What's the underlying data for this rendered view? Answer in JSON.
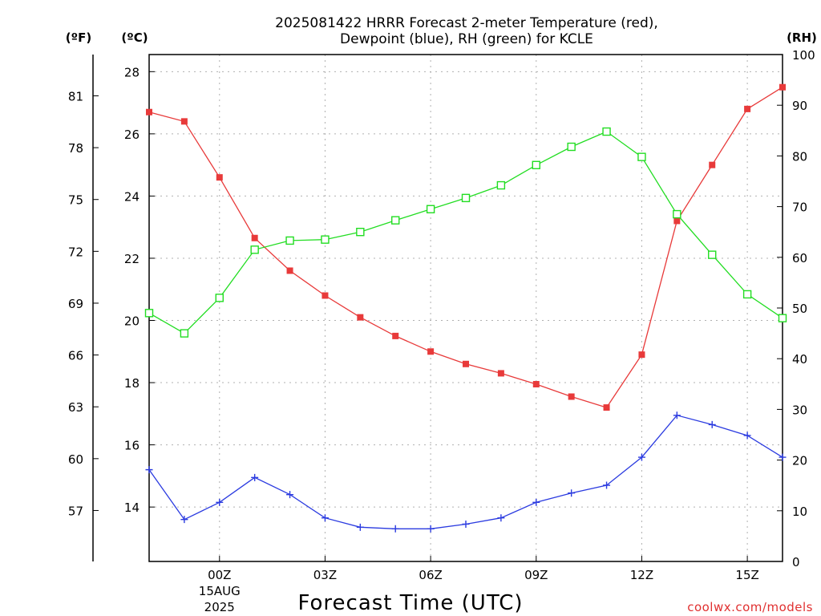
{
  "chart_data": {
    "type": "line",
    "title_line1": "2025081422 HRRR Forecast 2-meter Temperature (red),",
    "title_line2": "Dewpoint (blue), RH (green) for KCLE",
    "xlabel": "Forecast Time (UTC)",
    "credit": "coolwx.com/models",
    "unit_f": "(ºF)",
    "unit_c": "(ºC)",
    "unit_rh": "(RH)",
    "x_hours": [
      -2,
      -1,
      0,
      1,
      2,
      3,
      4,
      5,
      6,
      7,
      8,
      9,
      10,
      11,
      12,
      13,
      14,
      15,
      16
    ],
    "x_range": [
      -2,
      16
    ],
    "x_ticks": [
      {
        "hour": 0,
        "label": "00Z",
        "sub1": "15AUG",
        "sub2": "2025"
      },
      {
        "hour": 3,
        "label": "03Z"
      },
      {
        "hour": 6,
        "label": "06Z"
      },
      {
        "hour": 9,
        "label": "09Z"
      },
      {
        "hour": 12,
        "label": "12Z"
      },
      {
        "hour": 15,
        "label": "15Z"
      }
    ],
    "y_c_range": [
      12.25,
      28.55
    ],
    "y_c_ticks": [
      "14",
      "16",
      "18",
      "20",
      "22",
      "24",
      "26",
      "28"
    ],
    "y_f_ticks": [
      "57",
      "60",
      "63",
      "66",
      "69",
      "72",
      "75",
      "78",
      "81"
    ],
    "y_rh_range": [
      0,
      100
    ],
    "y_rh_ticks": [
      "0",
      "10",
      "20",
      "30",
      "40",
      "50",
      "60",
      "70",
      "80",
      "90",
      "100"
    ],
    "grid": true,
    "series": [
      {
        "name": "Temperature (red)",
        "axis": "c",
        "color": "#e83a3a",
        "marker": "filled-square",
        "values": [
          26.7,
          26.4,
          24.6,
          22.65,
          21.6,
          20.8,
          20.1,
          19.5,
          19.0,
          18.6,
          18.3,
          17.95,
          17.55,
          17.2,
          18.9,
          23.2,
          25.0,
          26.8,
          27.5
        ]
      },
      {
        "name": "Dewpoint (blue)",
        "axis": "c",
        "color": "#2b3be0",
        "marker": "plus",
        "values": [
          15.2,
          13.6,
          14.15,
          14.95,
          14.4,
          13.65,
          13.35,
          13.3,
          13.3,
          13.45,
          13.65,
          14.15,
          14.45,
          14.7,
          15.6,
          16.95,
          16.65,
          16.3,
          15.6
        ]
      },
      {
        "name": "RH (green)",
        "axis": "rh",
        "color": "#22dd22",
        "marker": "open-square",
        "values": [
          49,
          45,
          52,
          61.5,
          63.3,
          63.5,
          65,
          67.3,
          69.5,
          71.7,
          74.2,
          78.2,
          81.8,
          84.8,
          79.8,
          68.5,
          60.5,
          52.7,
          48
        ]
      }
    ]
  }
}
